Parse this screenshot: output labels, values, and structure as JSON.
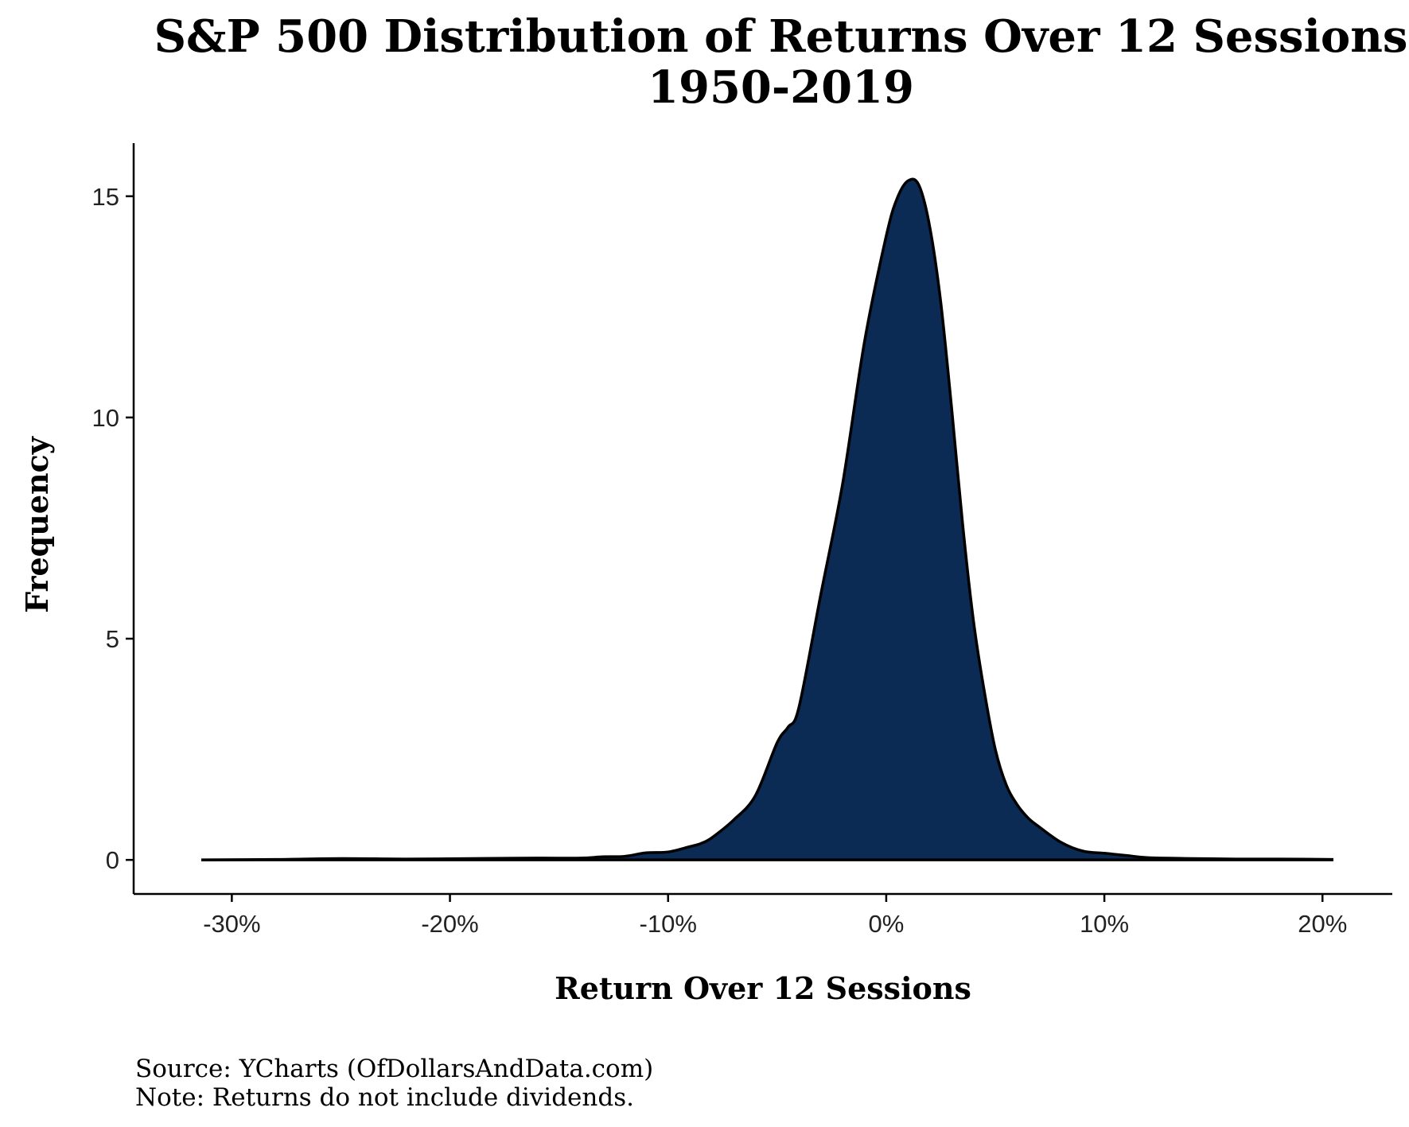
{
  "chart_data": {
    "type": "area",
    "title": "S&P 500 Distribution of Returns Over 12 Sessions",
    "subtitle": "1950-2019",
    "xlabel": "Return Over 12 Sessions",
    "ylabel": "Frequency",
    "xlim": [
      -0.345,
      0.232
    ],
    "ylim": [
      -0.77,
      16.2
    ],
    "x_ticks": [
      -0.3,
      -0.2,
      -0.1,
      0.0,
      0.1,
      0.2
    ],
    "x_tick_labels": [
      "-30%",
      "-20%",
      "-10%",
      "0%",
      "10%",
      "20%"
    ],
    "y_ticks": [
      0,
      5,
      10,
      15
    ],
    "y_tick_labels": [
      "0",
      "5",
      "10",
      "15"
    ],
    "grid": false,
    "legend": "none",
    "series": [
      {
        "fill_color": "#0b2b55",
        "line_color": "#000000",
        "x": [
          -0.314,
          -0.28,
          -0.25,
          -0.22,
          -0.19,
          -0.16,
          -0.14,
          -0.13,
          -0.12,
          -0.11,
          -0.1,
          -0.09,
          -0.085,
          -0.08,
          -0.07,
          -0.06,
          -0.05,
          -0.045,
          -0.04,
          -0.03,
          -0.02,
          -0.01,
          0.0,
          0.005,
          0.01,
          0.015,
          0.02,
          0.025,
          0.03,
          0.035,
          0.04,
          0.045,
          0.05,
          0.055,
          0.06,
          0.065,
          0.07,
          0.08,
          0.09,
          0.1,
          0.11,
          0.12,
          0.14,
          0.16,
          0.18,
          0.205
        ],
        "y": [
          0.0,
          0.01,
          0.03,
          0.02,
          0.03,
          0.04,
          0.04,
          0.07,
          0.08,
          0.16,
          0.18,
          0.3,
          0.37,
          0.5,
          0.9,
          1.45,
          2.65,
          3.0,
          3.45,
          6.0,
          8.5,
          11.7,
          14.1,
          14.95,
          15.35,
          15.25,
          14.3,
          12.6,
          10.2,
          7.6,
          5.4,
          3.8,
          2.5,
          1.7,
          1.25,
          0.95,
          0.75,
          0.4,
          0.2,
          0.15,
          0.1,
          0.05,
          0.03,
          0.02,
          0.02,
          0.01
        ]
      }
    ]
  },
  "caption": {
    "source": "Source:  YCharts (OfDollarsAndData.com)",
    "note": "Note: Returns do not include dividends."
  }
}
